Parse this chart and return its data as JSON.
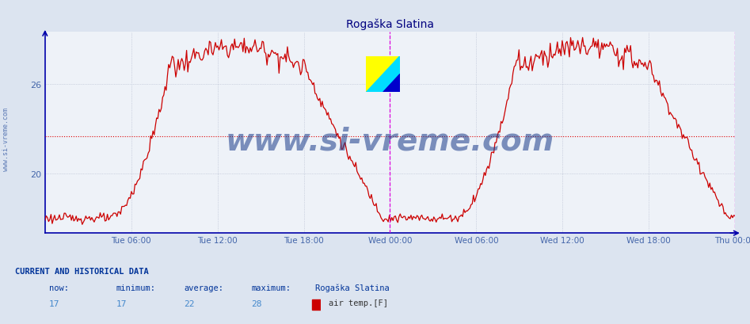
{
  "title": "Rogaška Slatina",
  "title_color": "#000080",
  "title_fontsize": 10,
  "bg_color": "#dce4f0",
  "plot_bg_color": "#eef2f8",
  "line_color": "#cc0000",
  "line_width": 0.9,
  "ylim": [
    16.0,
    29.5
  ],
  "yticks": [
    20,
    26
  ],
  "xtick_labels": [
    "Tue 06:00",
    "Tue 12:00",
    "Tue 18:00",
    "Wed 00:00",
    "Wed 06:00",
    "Wed 12:00",
    "Wed 18:00",
    "Thu 00:00"
  ],
  "grid_color": "#b0b8cc",
  "vline_color": "#dd00dd",
  "avg_value": 22.5,
  "avg_line_color": "#dd0000",
  "axis_color": "#0000aa",
  "tick_color": "#4466aa",
  "watermark_text": "www.si-vreme.com",
  "watermark_color": "#1a3a8a",
  "watermark_alpha": 0.55,
  "watermark_fontsize": 28,
  "sidebar_text": "www.si-vreme.com",
  "sidebar_color": "#4466aa",
  "footer_title": "CURRENT AND HISTORICAL DATA",
  "footer_now_label": "now:",
  "footer_min_label": "minimum:",
  "footer_avg_label": "average:",
  "footer_max_label": "maximum:",
  "footer_station": "Rogaška Slatina",
  "footer_now": "17",
  "footer_min": "17",
  "footer_avg": "22",
  "footer_max": "28",
  "footer_series_label": "air temp.[F]",
  "footer_series_color": "#cc0000",
  "n_points": 576,
  "tick_positions": [
    360,
    720,
    1080,
    1440,
    1800,
    2160,
    2520,
    2880
  ],
  "xlim": [
    0,
    2880
  ]
}
